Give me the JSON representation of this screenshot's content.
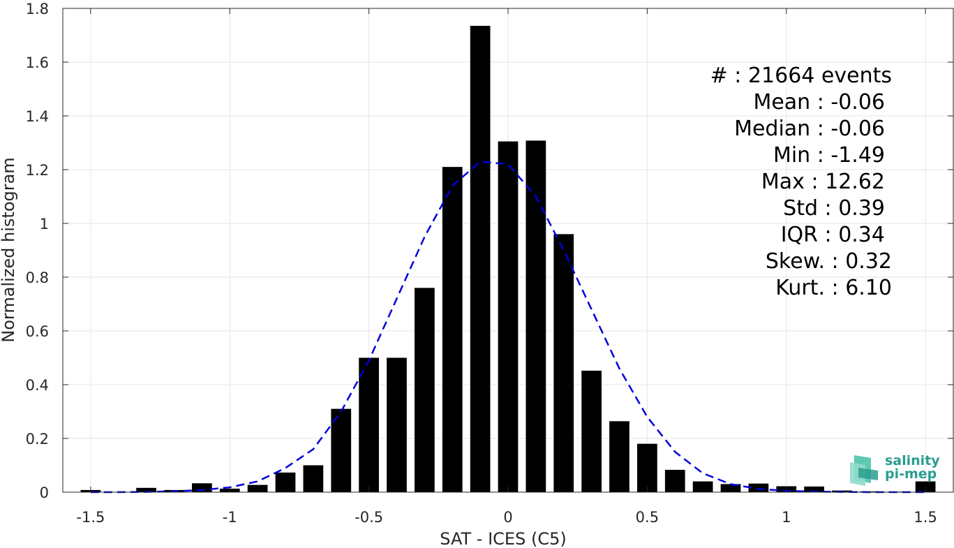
{
  "chart_data": {
    "type": "bar",
    "xlabel": "SAT - ICES (C5)",
    "ylabel": "Normalized histogram",
    "xlim": [
      -1.6,
      1.6
    ],
    "ylim": [
      0,
      1.8
    ],
    "grid": true,
    "x_ticks": [
      "-1.5",
      "-1",
      "-0.5",
      "0",
      "0.5",
      "1",
      "1.5"
    ],
    "y_ticks": [
      "0",
      "0.2",
      "0.4",
      "0.6",
      "0.8",
      "1",
      "1.2",
      "1.4",
      "1.6",
      "1.8"
    ],
    "bar_color": "#000000",
    "bins": [
      {
        "x": -1.5,
        "y": 0.008
      },
      {
        "x": -1.4,
        "y": 0.0
      },
      {
        "x": -1.3,
        "y": 0.016
      },
      {
        "x": -1.2,
        "y": 0.008
      },
      {
        "x": -1.1,
        "y": 0.033
      },
      {
        "x": -1.0,
        "y": 0.013
      },
      {
        "x": -0.9,
        "y": 0.027
      },
      {
        "x": -0.8,
        "y": 0.073
      },
      {
        "x": -0.7,
        "y": 0.1
      },
      {
        "x": -0.6,
        "y": 0.31
      },
      {
        "x": -0.5,
        "y": 0.5
      },
      {
        "x": -0.4,
        "y": 0.5
      },
      {
        "x": -0.3,
        "y": 0.76
      },
      {
        "x": -0.2,
        "y": 1.21
      },
      {
        "x": -0.1,
        "y": 1.735
      },
      {
        "x": 0.0,
        "y": 1.305
      },
      {
        "x": 0.1,
        "y": 1.308
      },
      {
        "x": 0.2,
        "y": 0.96
      },
      {
        "x": 0.3,
        "y": 0.452
      },
      {
        "x": 0.4,
        "y": 0.264
      },
      {
        "x": 0.5,
        "y": 0.18
      },
      {
        "x": 0.6,
        "y": 0.083
      },
      {
        "x": 0.7,
        "y": 0.04
      },
      {
        "x": 0.8,
        "y": 0.03
      },
      {
        "x": 0.9,
        "y": 0.032
      },
      {
        "x": 1.0,
        "y": 0.022
      },
      {
        "x": 1.1,
        "y": 0.021
      },
      {
        "x": 1.2,
        "y": 0.006
      },
      {
        "x": 1.3,
        "y": 0.003
      },
      {
        "x": 1.4,
        "y": 0.002
      },
      {
        "x": 1.5,
        "y": 0.04
      }
    ],
    "fit_curve": {
      "style": "dashed",
      "color": "#0000dd",
      "x": [
        -1.5,
        -1.4,
        -1.3,
        -1.2,
        -1.1,
        -1.0,
        -0.9,
        -0.8,
        -0.7,
        -0.6,
        -0.5,
        -0.4,
        -0.3,
        -0.2,
        -0.1,
        0.0,
        0.1,
        0.2,
        0.3,
        0.4,
        0.5,
        0.6,
        0.7,
        0.8,
        0.9,
        1.0,
        1.1,
        1.2,
        1.3,
        1.4,
        1.5
      ],
      "y": [
        0.0,
        0.0,
        0.001,
        0.003,
        0.008,
        0.018,
        0.04,
        0.09,
        0.16,
        0.3,
        0.49,
        0.72,
        0.95,
        1.14,
        1.23,
        1.22,
        1.1,
        0.9,
        0.68,
        0.46,
        0.28,
        0.15,
        0.07,
        0.03,
        0.012,
        0.005,
        0.002,
        0.001,
        0.0,
        0.0,
        0.0
      ]
    },
    "stats": [
      "#  : 21664 events",
      "Mean : -0.06",
      "Median : -0.06",
      "Min : -1.49",
      "Max : 12.62",
      "Std : 0.39",
      "IQR : 0.34",
      "Skew. : 0.32",
      "Kurt. : 6.10"
    ]
  },
  "logo": {
    "line1": "salinity",
    "line2": "pi-mep"
  }
}
